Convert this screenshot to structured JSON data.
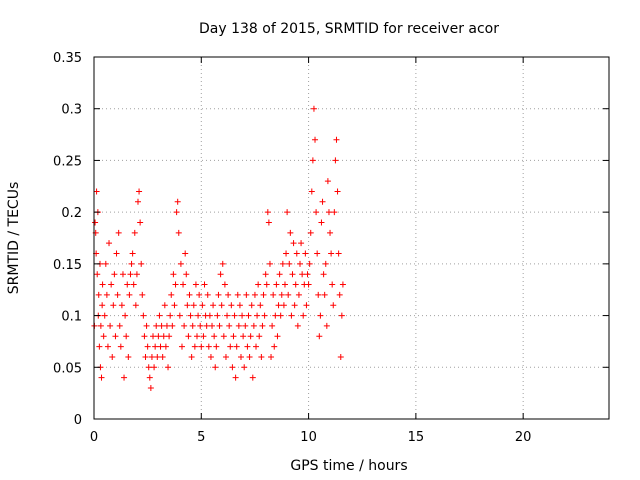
{
  "chart_data": {
    "type": "scatter",
    "title": "Day 138 of 2015, SRMTID for receiver acor",
    "xlabel": "GPS time / hours",
    "ylabel": "SRMTID / TECUs",
    "xlim": [
      0,
      24
    ],
    "ylim": [
      0,
      0.35
    ],
    "xticks": [
      0,
      5,
      10,
      15,
      20
    ],
    "xtick_labels": [
      "0",
      "5",
      "10",
      "15",
      "20"
    ],
    "yticks": [
      0,
      0.05,
      0.1,
      0.15,
      0.2,
      0.25,
      0.3,
      0.35
    ],
    "ytick_labels": [
      "0",
      "0.05",
      "0.1",
      "0.15",
      "0.2",
      "0.25",
      "0.3",
      "0.35"
    ],
    "grid": true,
    "marker": "+",
    "color": "#ff0000",
    "series": [
      {
        "name": "SRMTID",
        "points": [
          [
            0.02,
            0.09
          ],
          [
            0.05,
            0.19
          ],
          [
            0.08,
            0.18
          ],
          [
            0.1,
            0.16
          ],
          [
            0.12,
            0.22
          ],
          [
            0.15,
            0.14
          ],
          [
            0.18,
            0.2
          ],
          [
            0.2,
            0.1
          ],
          [
            0.22,
            0.12
          ],
          [
            0.25,
            0.07
          ],
          [
            0.28,
            0.15
          ],
          [
            0.3,
            0.05
          ],
          [
            0.32,
            0.09
          ],
          [
            0.35,
            0.04
          ],
          [
            0.38,
            0.11
          ],
          [
            0.4,
            0.13
          ],
          [
            0.45,
            0.08
          ],
          [
            0.5,
            0.1
          ],
          [
            0.55,
            0.15
          ],
          [
            0.6,
            0.12
          ],
          [
            0.65,
            0.07
          ],
          [
            0.7,
            0.17
          ],
          [
            0.75,
            0.09
          ],
          [
            0.8,
            0.13
          ],
          [
            0.85,
            0.06
          ],
          [
            0.9,
            0.11
          ],
          [
            0.95,
            0.14
          ],
          [
            1.0,
            0.08
          ],
          [
            1.05,
            0.16
          ],
          [
            1.1,
            0.12
          ],
          [
            1.15,
            0.18
          ],
          [
            1.2,
            0.09
          ],
          [
            1.25,
            0.07
          ],
          [
            1.3,
            0.11
          ],
          [
            1.35,
            0.14
          ],
          [
            1.4,
            0.04
          ],
          [
            1.45,
            0.1
          ],
          [
            1.5,
            0.08
          ],
          [
            1.55,
            0.13
          ],
          [
            1.6,
            0.06
          ],
          [
            1.65,
            0.12
          ],
          [
            1.7,
            0.14
          ],
          [
            1.75,
            0.15
          ],
          [
            1.8,
            0.16
          ],
          [
            1.85,
            0.13
          ],
          [
            1.9,
            0.18
          ],
          [
            1.95,
            0.11
          ],
          [
            2.0,
            0.14
          ],
          [
            2.05,
            0.21
          ],
          [
            2.1,
            0.22
          ],
          [
            2.15,
            0.19
          ],
          [
            2.2,
            0.15
          ],
          [
            2.25,
            0.12
          ],
          [
            2.3,
            0.1
          ],
          [
            2.35,
            0.08
          ],
          [
            2.4,
            0.06
          ],
          [
            2.45,
            0.09
          ],
          [
            2.5,
            0.07
          ],
          [
            2.55,
            0.05
          ],
          [
            2.6,
            0.04
          ],
          [
            2.65,
            0.03
          ],
          [
            2.7,
            0.06
          ],
          [
            2.75,
            0.08
          ],
          [
            2.8,
            0.05
          ],
          [
            2.85,
            0.07
          ],
          [
            2.9,
            0.09
          ],
          [
            2.95,
            0.06
          ],
          [
            3.0,
            0.08
          ],
          [
            3.05,
            0.1
          ],
          [
            3.1,
            0.07
          ],
          [
            3.15,
            0.09
          ],
          [
            3.2,
            0.06
          ],
          [
            3.25,
            0.08
          ],
          [
            3.3,
            0.11
          ],
          [
            3.35,
            0.07
          ],
          [
            3.4,
            0.09
          ],
          [
            3.45,
            0.05
          ],
          [
            3.5,
            0.08
          ],
          [
            3.55,
            0.1
          ],
          [
            3.6,
            0.12
          ],
          [
            3.65,
            0.09
          ],
          [
            3.7,
            0.14
          ],
          [
            3.75,
            0.11
          ],
          [
            3.8,
            0.13
          ],
          [
            3.85,
            0.2
          ],
          [
            3.9,
            0.21
          ],
          [
            3.95,
            0.18
          ],
          [
            4.0,
            0.1
          ],
          [
            4.05,
            0.15
          ],
          [
            4.1,
            0.07
          ],
          [
            4.15,
            0.13
          ],
          [
            4.2,
            0.09
          ],
          [
            4.25,
            0.16
          ],
          [
            4.3,
            0.14
          ],
          [
            4.35,
            0.11
          ],
          [
            4.4,
            0.08
          ],
          [
            4.45,
            0.12
          ],
          [
            4.5,
            0.1
          ],
          [
            4.55,
            0.06
          ],
          [
            4.6,
            0.09
          ],
          [
            4.65,
            0.11
          ],
          [
            4.7,
            0.07
          ],
          [
            4.75,
            0.13
          ],
          [
            4.8,
            0.08
          ],
          [
            4.85,
            0.1
          ],
          [
            4.9,
            0.12
          ],
          [
            4.95,
            0.09
          ],
          [
            5.0,
            0.07
          ],
          [
            5.05,
            0.11
          ],
          [
            5.1,
            0.08
          ],
          [
            5.15,
            0.13
          ],
          [
            5.2,
            0.1
          ],
          [
            5.25,
            0.09
          ],
          [
            5.3,
            0.12
          ],
          [
            5.35,
            0.07
          ],
          [
            5.4,
            0.1
          ],
          [
            5.45,
            0.06
          ],
          [
            5.5,
            0.09
          ],
          [
            5.55,
            0.11
          ],
          [
            5.6,
            0.08
          ],
          [
            5.65,
            0.05
          ],
          [
            5.7,
            0.07
          ],
          [
            5.75,
            0.1
          ],
          [
            5.8,
            0.12
          ],
          [
            5.85,
            0.09
          ],
          [
            5.9,
            0.14
          ],
          [
            5.95,
            0.11
          ],
          [
            6.0,
            0.15
          ],
          [
            6.05,
            0.08
          ],
          [
            6.1,
            0.13
          ],
          [
            6.15,
            0.06
          ],
          [
            6.2,
            0.1
          ],
          [
            6.25,
            0.12
          ],
          [
            6.3,
            0.09
          ],
          [
            6.35,
            0.07
          ],
          [
            6.4,
            0.11
          ],
          [
            6.45,
            0.05
          ],
          [
            6.5,
            0.08
          ],
          [
            6.55,
            0.1
          ],
          [
            6.6,
            0.04
          ],
          [
            6.65,
            0.07
          ],
          [
            6.7,
            0.12
          ],
          [
            6.75,
            0.09
          ],
          [
            6.8,
            0.11
          ],
          [
            6.85,
            0.06
          ],
          [
            6.9,
            0.1
          ],
          [
            6.95,
            0.08
          ],
          [
            7.0,
            0.05
          ],
          [
            7.05,
            0.09
          ],
          [
            7.1,
            0.12
          ],
          [
            7.15,
            0.07
          ],
          [
            7.2,
            0.1
          ],
          [
            7.25,
            0.06
          ],
          [
            7.3,
            0.08
          ],
          [
            7.35,
            0.11
          ],
          [
            7.4,
            0.04
          ],
          [
            7.45,
            0.09
          ],
          [
            7.5,
            0.12
          ],
          [
            7.55,
            0.07
          ],
          [
            7.6,
            0.1
          ],
          [
            7.65,
            0.13
          ],
          [
            7.7,
            0.08
          ],
          [
            7.75,
            0.11
          ],
          [
            7.8,
            0.06
          ],
          [
            7.85,
            0.09
          ],
          [
            7.9,
            0.12
          ],
          [
            7.95,
            0.1
          ],
          [
            8.0,
            0.14
          ],
          [
            8.05,
            0.13
          ],
          [
            8.1,
            0.2
          ],
          [
            8.15,
            0.19
          ],
          [
            8.2,
            0.15
          ],
          [
            8.25,
            0.06
          ],
          [
            8.3,
            0.09
          ],
          [
            8.35,
            0.12
          ],
          [
            8.4,
            0.07
          ],
          [
            8.45,
            0.1
          ],
          [
            8.5,
            0.13
          ],
          [
            8.55,
            0.08
          ],
          [
            8.6,
            0.11
          ],
          [
            8.65,
            0.14
          ],
          [
            8.7,
            0.1
          ],
          [
            8.75,
            0.12
          ],
          [
            8.8,
            0.15
          ],
          [
            8.85,
            0.11
          ],
          [
            8.9,
            0.13
          ],
          [
            8.95,
            0.16
          ],
          [
            9.0,
            0.2
          ],
          [
            9.05,
            0.12
          ],
          [
            9.1,
            0.15
          ],
          [
            9.15,
            0.18
          ],
          [
            9.2,
            0.1
          ],
          [
            9.25,
            0.14
          ],
          [
            9.3,
            0.17
          ],
          [
            9.35,
            0.11
          ],
          [
            9.4,
            0.13
          ],
          [
            9.45,
            0.16
          ],
          [
            9.5,
            0.09
          ],
          [
            9.55,
            0.12
          ],
          [
            9.6,
            0.15
          ],
          [
            9.65,
            0.17
          ],
          [
            9.7,
            0.14
          ],
          [
            9.75,
            0.1
          ],
          [
            9.8,
            0.13
          ],
          [
            9.85,
            0.16
          ],
          [
            9.9,
            0.11
          ],
          [
            9.95,
            0.14
          ],
          [
            10.0,
            0.13
          ],
          [
            10.05,
            0.15
          ],
          [
            10.1,
            0.18
          ],
          [
            10.15,
            0.22
          ],
          [
            10.2,
            0.25
          ],
          [
            10.25,
            0.3
          ],
          [
            10.3,
            0.27
          ],
          [
            10.35,
            0.2
          ],
          [
            10.4,
            0.16
          ],
          [
            10.45,
            0.12
          ],
          [
            10.5,
            0.08
          ],
          [
            10.55,
            0.1
          ],
          [
            10.6,
            0.19
          ],
          [
            10.65,
            0.21
          ],
          [
            10.7,
            0.14
          ],
          [
            10.75,
            0.12
          ],
          [
            10.8,
            0.15
          ],
          [
            10.85,
            0.09
          ],
          [
            10.9,
            0.23
          ],
          [
            10.95,
            0.2
          ],
          [
            11.0,
            0.18
          ],
          [
            11.05,
            0.16
          ],
          [
            11.1,
            0.13
          ],
          [
            11.15,
            0.11
          ],
          [
            11.2,
            0.2
          ],
          [
            11.25,
            0.25
          ],
          [
            11.3,
            0.27
          ],
          [
            11.35,
            0.22
          ],
          [
            11.4,
            0.16
          ],
          [
            11.45,
            0.12
          ],
          [
            11.5,
            0.06
          ],
          [
            11.55,
            0.1
          ],
          [
            11.6,
            0.13
          ]
        ]
      }
    ]
  }
}
